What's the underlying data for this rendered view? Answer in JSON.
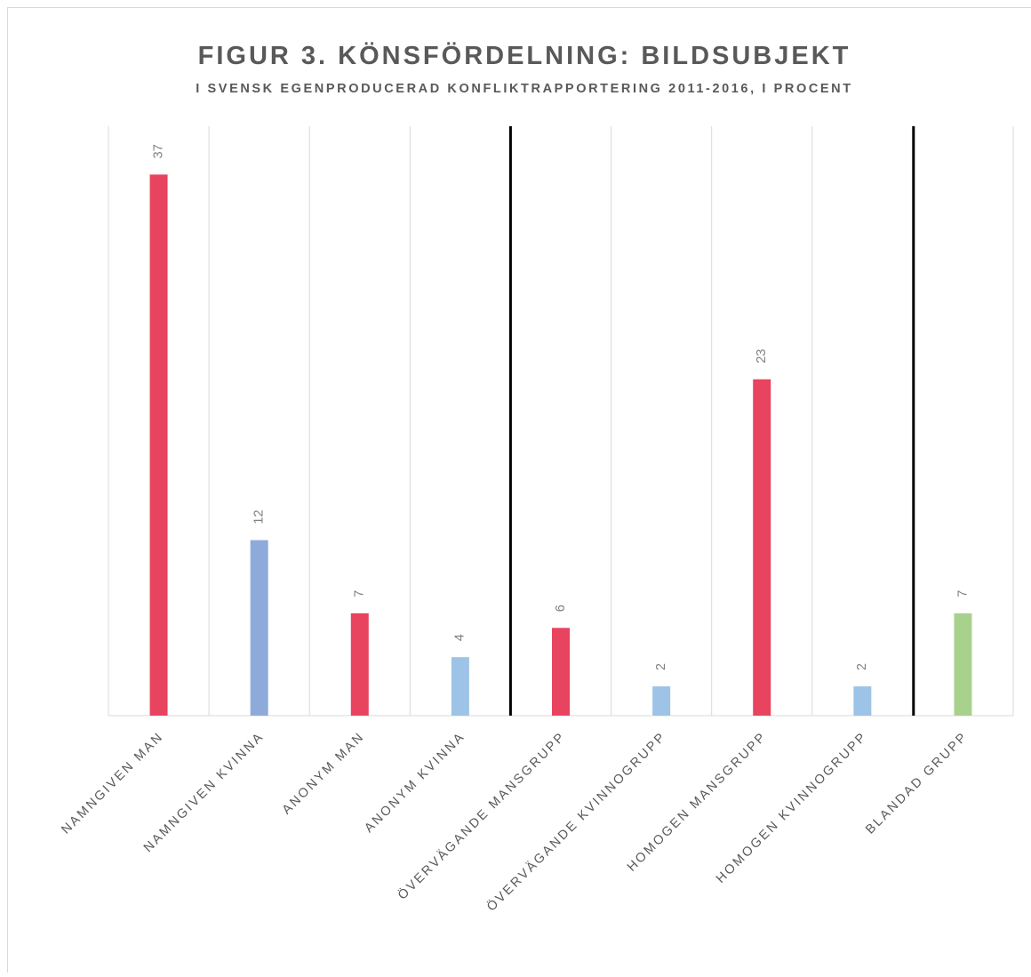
{
  "chart_data": {
    "type": "bar",
    "title": "FIGUR 3. KÖNSFÖRDELNING: BILDSUBJEKT",
    "subtitle": "I SVENSK EGENPRODUCERAD KONFLIKTRAPPORTERING 2011-2016, I PROCENT",
    "categories": [
      "NAMNGIVEN MAN",
      "NAMNGIVEN KVINNA",
      "ANONYM MAN",
      "ANONYM KVINNA",
      "ÖVERVÄGANDE MANSGRUPP",
      "ÖVERVÄGANDE KVINNOGRUPP",
      "HOMOGEN MANSGRUPP",
      "HOMOGEN KVINNOGRUPP",
      "BLANDAD GRUPP"
    ],
    "values": [
      37,
      12,
      7,
      4,
      6,
      2,
      23,
      2,
      7
    ],
    "colors": [
      "#e8435f",
      "#8eaadb",
      "#e8435f",
      "#9dc3e6",
      "#e8435f",
      "#9dc3e6",
      "#e8435f",
      "#9dc3e6",
      "#a9d18e"
    ],
    "ylim": [
      0,
      40
    ],
    "grid": true
  }
}
